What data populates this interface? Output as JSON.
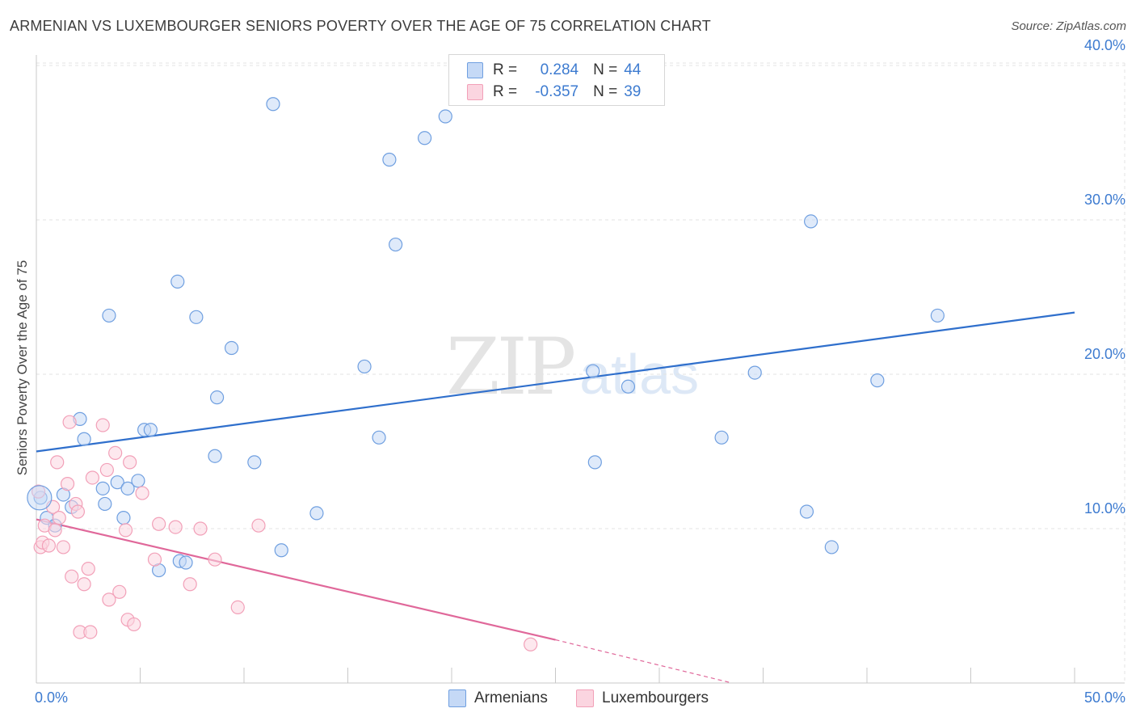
{
  "title": "ARMENIAN VS LUXEMBOURGER SENIORS POVERTY OVER THE AGE OF 75 CORRELATION CHART",
  "source": "Source: ZipAtlas.com",
  "watermark": {
    "zip": "ZIP",
    "atlas": "atlas"
  },
  "legend": {
    "rows": [
      {
        "r_label": "R =",
        "r_value": "0.284",
        "n_label": "N =",
        "n_value": "44",
        "color": "#6f9fe0",
        "fill": "#c5d9f6"
      },
      {
        "r_label": "R =",
        "r_value": "-0.357",
        "n_label": "N =",
        "n_value": "39",
        "color": "#f2a0b8",
        "fill": "#fbd5e0"
      }
    ]
  },
  "bottom_legend": [
    {
      "label": "Armenians",
      "color": "#6f9fe0",
      "fill": "#c5d9f6"
    },
    {
      "label": "Luxembourgers",
      "color": "#f2a0b8",
      "fill": "#fbd5e0"
    }
  ],
  "chart_data": {
    "type": "scatter",
    "title": "ARMENIAN VS LUXEMBOURGER SENIORS POVERTY OVER THE AGE OF 75 CORRELATION CHART",
    "xlabel": "",
    "ylabel": "Seniors Poverty Over the Age of 75",
    "xlim": [
      0,
      50
    ],
    "ylim": [
      0,
      41
    ],
    "x_tick_labels": [
      "0.0%",
      "50.0%"
    ],
    "y_ticks": [
      10,
      20,
      30,
      40
    ],
    "y_tick_labels": [
      "10.0%",
      "20.0%",
      "30.0%",
      "40.0%"
    ],
    "grid": true,
    "series": [
      {
        "name": "Armenians",
        "color": "#6f9fe0",
        "fill": "#c5d9f6",
        "trend_color": "#2f6fcc",
        "trend": {
          "x0": 0,
          "y0": 15.0,
          "x1": 50,
          "y1": 24.0
        },
        "points": [
          [
            0.2,
            12.0
          ],
          [
            0.5,
            10.7
          ],
          [
            0.9,
            10.2
          ],
          [
            1.3,
            12.2
          ],
          [
            1.7,
            11.4
          ],
          [
            2.1,
            17.1
          ],
          [
            2.3,
            15.8
          ],
          [
            3.2,
            12.6
          ],
          [
            3.3,
            11.6
          ],
          [
            3.5,
            23.8
          ],
          [
            3.9,
            13.0
          ],
          [
            4.2,
            10.7
          ],
          [
            4.4,
            12.6
          ],
          [
            4.9,
            13.1
          ],
          [
            5.2,
            16.4
          ],
          [
            5.5,
            16.4
          ],
          [
            5.9,
            7.3
          ],
          [
            6.8,
            26.0
          ],
          [
            6.9,
            7.9
          ],
          [
            7.2,
            7.8
          ],
          [
            7.7,
            23.7
          ],
          [
            8.6,
            14.7
          ],
          [
            8.7,
            18.5
          ],
          [
            9.4,
            21.7
          ],
          [
            10.5,
            14.3
          ],
          [
            11.4,
            37.5
          ],
          [
            11.8,
            8.6
          ],
          [
            13.5,
            11.0
          ],
          [
            15.8,
            20.5
          ],
          [
            16.5,
            15.9
          ],
          [
            17.0,
            33.9
          ],
          [
            17.3,
            28.4
          ],
          [
            18.7,
            35.3
          ],
          [
            19.7,
            36.7
          ],
          [
            26.8,
            20.2
          ],
          [
            26.9,
            14.3
          ],
          [
            28.5,
            19.2
          ],
          [
            33.0,
            15.9
          ],
          [
            34.6,
            20.1
          ],
          [
            37.1,
            11.1
          ],
          [
            37.3,
            29.9
          ],
          [
            38.3,
            8.8
          ],
          [
            40.5,
            19.6
          ],
          [
            43.4,
            23.8
          ]
        ]
      },
      {
        "name": "Luxembourgers",
        "color": "#f2a0b8",
        "fill": "#fbd5e0",
        "trend_color": "#e0689a",
        "trend": {
          "x0": 0,
          "y0": 10.6,
          "x1": 25,
          "y1": 2.8
        },
        "trend_dash": {
          "x0": 25,
          "y0": 2.8,
          "x1": 33.5,
          "y1": 0.0
        },
        "points": [
          [
            0.1,
            12.4
          ],
          [
            0.2,
            8.8
          ],
          [
            0.3,
            9.1
          ],
          [
            0.4,
            10.2
          ],
          [
            0.6,
            8.9
          ],
          [
            0.8,
            11.4
          ],
          [
            0.9,
            9.9
          ],
          [
            1.0,
            14.3
          ],
          [
            1.1,
            10.7
          ],
          [
            1.3,
            8.8
          ],
          [
            1.5,
            12.9
          ],
          [
            1.6,
            16.9
          ],
          [
            1.7,
            6.9
          ],
          [
            1.9,
            11.6
          ],
          [
            2.0,
            11.1
          ],
          [
            2.1,
            3.3
          ],
          [
            2.3,
            6.4
          ],
          [
            2.5,
            7.4
          ],
          [
            2.6,
            3.3
          ],
          [
            2.7,
            13.3
          ],
          [
            3.2,
            16.7
          ],
          [
            3.4,
            13.8
          ],
          [
            3.5,
            5.4
          ],
          [
            3.8,
            14.9
          ],
          [
            4.0,
            5.9
          ],
          [
            4.3,
            9.9
          ],
          [
            4.4,
            4.1
          ],
          [
            4.5,
            14.3
          ],
          [
            4.7,
            3.8
          ],
          [
            5.1,
            12.3
          ],
          [
            5.7,
            8.0
          ],
          [
            5.9,
            10.3
          ],
          [
            6.7,
            10.1
          ],
          [
            7.4,
            6.4
          ],
          [
            7.9,
            10.0
          ],
          [
            8.6,
            8.0
          ],
          [
            9.7,
            4.9
          ],
          [
            10.7,
            10.2
          ],
          [
            23.8,
            2.5
          ]
        ]
      }
    ]
  }
}
